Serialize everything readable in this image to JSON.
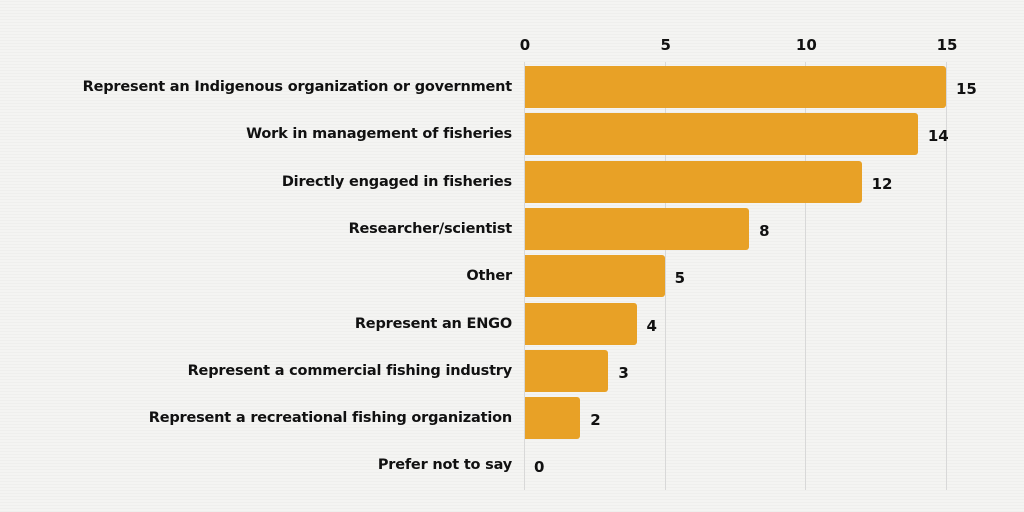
{
  "chart_data": {
    "type": "bar",
    "orientation": "horizontal",
    "title": "",
    "xlabel": "",
    "ylabel": "",
    "xlim": [
      0,
      15
    ],
    "x_ticks": [
      "0",
      "5",
      "10",
      "15"
    ],
    "x_axis_position": "top",
    "grid": true,
    "legend": null,
    "bar_color": "#e8a126",
    "categories": [
      "Represent an Indigenous organization or government",
      "Work in management of fisheries",
      "Directly engaged in fisheries",
      "Researcher/scientist",
      "Other",
      "Represent an ENGO",
      "Represent a commercial fishing industry",
      "Represent a recreational fishing organization",
      "Prefer not to say"
    ],
    "values": [
      15,
      14,
      12,
      8,
      5,
      4,
      3,
      2,
      0
    ],
    "value_labels": [
      "15",
      "14",
      "12",
      "8",
      "5",
      "4",
      "3",
      "2",
      "0"
    ]
  }
}
